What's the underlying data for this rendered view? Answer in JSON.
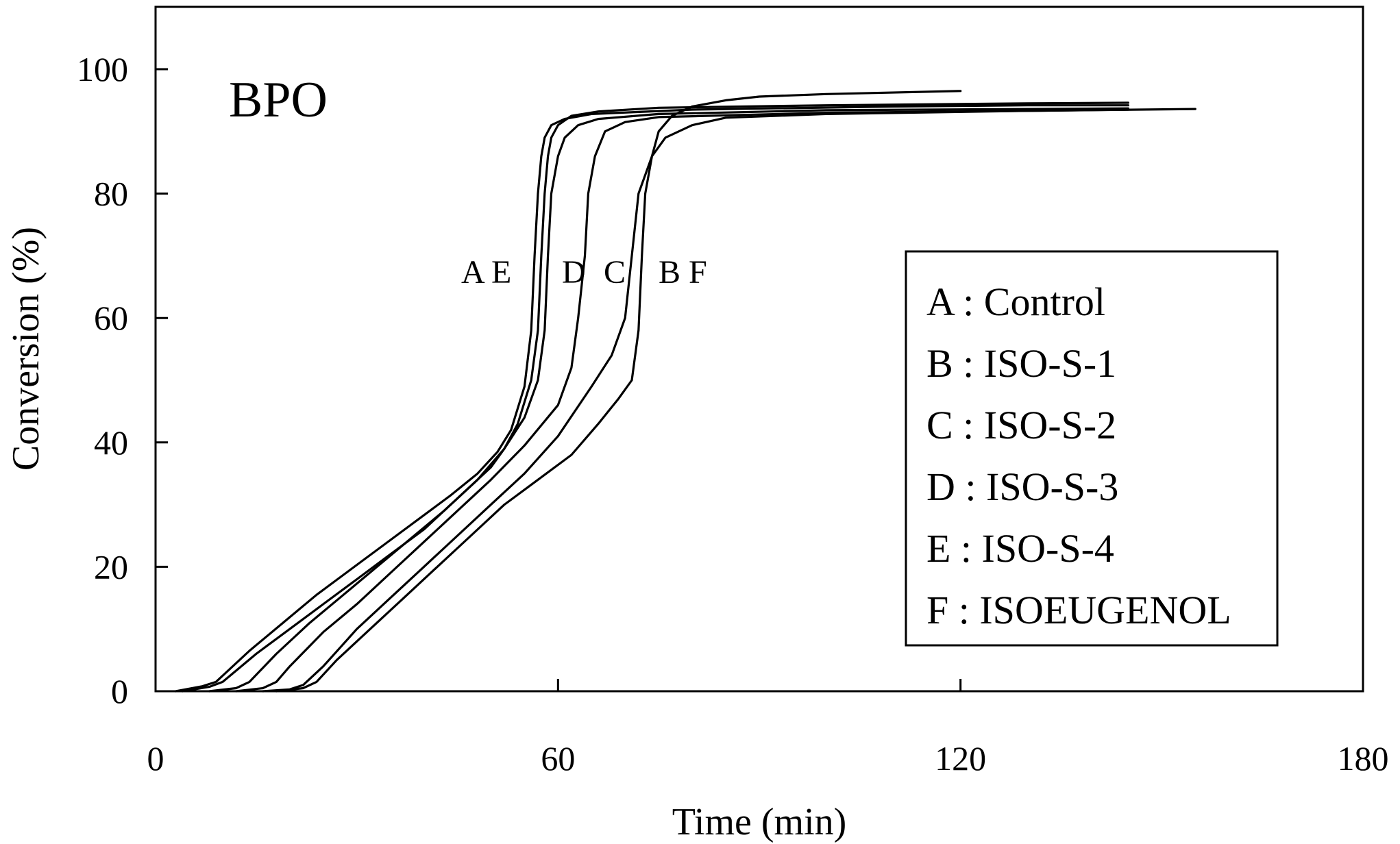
{
  "chart_data": {
    "type": "line",
    "panel_label": "BPO",
    "xlabel": "Time (min)",
    "ylabel": "Conversion (%)",
    "xlim": [
      0,
      180
    ],
    "ylim": [
      0,
      100
    ],
    "xticks": [
      "0",
      "60",
      "120",
      "180"
    ],
    "yticks": [
      "0",
      "20",
      "40",
      "60",
      "80",
      "100"
    ],
    "grid": false,
    "legend_position": "right",
    "legend": [
      "A : Control",
      "B : ISO-S-1",
      "C : ISO-S-2",
      "D : ISO-S-3",
      "E : ISO-S-4",
      "F : ISOEUGENOL"
    ],
    "curve_labels": [
      "A E",
      "D",
      "C",
      "B F"
    ],
    "series": [
      {
        "values": [
          [
            4,
            0
          ],
          [
            8,
            0.7
          ],
          [
            10,
            1.5
          ],
          [
            15,
            6
          ],
          [
            20,
            10
          ],
          [
            25,
            14
          ],
          [
            30,
            18
          ],
          [
            35,
            22
          ],
          [
            40,
            26
          ],
          [
            45,
            31
          ],
          [
            50,
            36
          ],
          [
            52,
            39
          ],
          [
            54,
            43
          ],
          [
            56,
            50
          ],
          [
            57,
            58
          ],
          [
            57.5,
            70
          ],
          [
            58,
            80
          ],
          [
            58.5,
            86
          ],
          [
            59,
            89
          ],
          [
            60,
            91
          ],
          [
            62,
            92.5
          ],
          [
            66,
            93.2
          ],
          [
            75,
            93.8
          ],
          [
            100,
            94.2
          ],
          [
            130,
            94.5
          ],
          [
            145,
            94.6
          ]
        ]
      },
      {
        "values": [
          [
            16,
            0
          ],
          [
            20,
            0.3
          ],
          [
            22,
            1
          ],
          [
            25,
            4
          ],
          [
            30,
            10
          ],
          [
            35,
            15
          ],
          [
            40,
            20
          ],
          [
            45,
            25
          ],
          [
            50,
            30
          ],
          [
            55,
            35
          ],
          [
            60,
            41
          ],
          [
            65,
            49
          ],
          [
            68,
            54
          ],
          [
            70,
            60
          ],
          [
            71,
            70
          ],
          [
            72,
            80
          ],
          [
            74,
            86
          ],
          [
            76,
            89
          ],
          [
            80,
            91
          ],
          [
            85,
            92.2
          ],
          [
            100,
            92.8
          ],
          [
            130,
            93.3
          ],
          [
            155,
            93.6
          ]
        ]
      },
      {
        "values": [
          [
            12,
            0
          ],
          [
            16,
            0.5
          ],
          [
            18,
            1.5
          ],
          [
            20,
            4
          ],
          [
            25,
            9.5
          ],
          [
            30,
            14
          ],
          [
            35,
            19
          ],
          [
            40,
            24
          ],
          [
            45,
            29
          ],
          [
            50,
            34
          ],
          [
            55,
            39.5
          ],
          [
            60,
            46
          ],
          [
            62,
            52
          ],
          [
            63,
            60
          ],
          [
            64,
            70
          ],
          [
            64.5,
            80
          ],
          [
            65.5,
            86
          ],
          [
            67,
            90
          ],
          [
            70,
            91.5
          ],
          [
            75,
            92.3
          ],
          [
            100,
            93
          ],
          [
            130,
            93.3
          ],
          [
            145,
            93.5
          ]
        ]
      },
      {
        "values": [
          [
            8,
            0
          ],
          [
            12,
            0.5
          ],
          [
            14,
            1.5
          ],
          [
            18,
            6
          ],
          [
            23,
            11
          ],
          [
            28,
            15.5
          ],
          [
            33,
            20
          ],
          [
            38,
            24.5
          ],
          [
            43,
            29
          ],
          [
            48,
            34
          ],
          [
            52,
            39
          ],
          [
            55,
            44
          ],
          [
            57,
            50
          ],
          [
            58,
            58
          ],
          [
            58.5,
            70
          ],
          [
            59,
            80
          ],
          [
            60,
            86
          ],
          [
            61,
            89
          ],
          [
            63,
            91
          ],
          [
            66,
            92
          ],
          [
            75,
            92.8
          ],
          [
            100,
            93.4
          ],
          [
            130,
            93.6
          ],
          [
            145,
            93.7
          ]
        ]
      },
      {
        "values": [
          [
            3,
            0
          ],
          [
            7,
            0.8
          ],
          [
            9,
            1.5
          ],
          [
            14,
            6.5
          ],
          [
            19,
            11
          ],
          [
            24,
            15.5
          ],
          [
            29,
            19.5
          ],
          [
            34,
            23.5
          ],
          [
            39,
            27.5
          ],
          [
            44,
            31.5
          ],
          [
            48,
            35
          ],
          [
            51,
            38.5
          ],
          [
            53,
            42
          ],
          [
            55,
            49
          ],
          [
            56,
            58
          ],
          [
            56.5,
            70
          ],
          [
            57,
            80
          ],
          [
            57.5,
            86
          ],
          [
            58,
            89
          ],
          [
            59,
            91
          ],
          [
            61,
            92
          ],
          [
            65,
            92.8
          ],
          [
            80,
            93.5
          ],
          [
            110,
            94
          ],
          [
            130,
            94.2
          ],
          [
            145,
            94.2
          ]
        ]
      },
      {
        "values": [
          [
            18,
            0
          ],
          [
            22,
            0.5
          ],
          [
            24,
            1.5
          ],
          [
            27,
            5
          ],
          [
            32,
            10
          ],
          [
            37,
            15
          ],
          [
            42,
            20
          ],
          [
            47,
            25
          ],
          [
            52,
            30
          ],
          [
            57,
            34
          ],
          [
            62,
            38
          ],
          [
            66,
            43
          ],
          [
            69,
            47
          ],
          [
            71,
            50
          ],
          [
            72,
            58
          ],
          [
            72.5,
            70
          ],
          [
            73,
            80
          ],
          [
            74,
            86
          ],
          [
            75,
            90
          ],
          [
            77,
            92.5
          ],
          [
            80,
            94
          ],
          [
            85,
            95
          ],
          [
            90,
            95.6
          ],
          [
            100,
            96
          ],
          [
            120,
            96.5
          ]
        ]
      }
    ]
  }
}
